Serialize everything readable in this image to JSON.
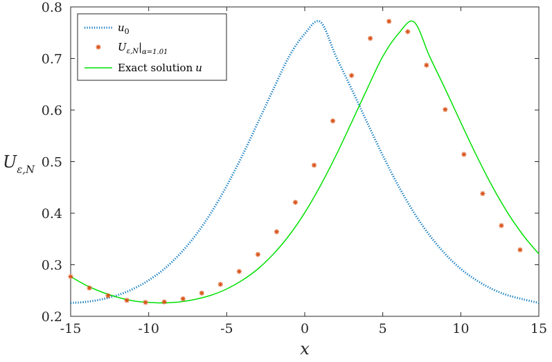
{
  "chart_data": {
    "type": "line",
    "xlabel": "x",
    "ylabel_main": "U",
    "ylabel_sub": "ε,N",
    "xlim": [
      -15,
      15
    ],
    "ylim": [
      0.2,
      0.8
    ],
    "x_ticks": [
      -15,
      -10,
      -5,
      0,
      5,
      10,
      15
    ],
    "x_tick_labels": [
      "-15",
      "-10",
      "-5",
      "0",
      "5",
      "10",
      "15"
    ],
    "y_ticks": [
      0.2,
      0.3,
      0.4,
      0.5,
      0.6,
      0.7,
      0.8
    ],
    "y_tick_labels": [
      "0.2",
      "0.3",
      "0.4",
      "0.5",
      "0.6",
      "0.7",
      "0.8"
    ],
    "grid": false,
    "legend_position": "top-left",
    "series": [
      {
        "name": "u0",
        "legend_main": "u",
        "legend_sub": "0",
        "style": "dotted",
        "color": "#0072BD",
        "x": [
          -15,
          -14,
          -13,
          -12,
          -11,
          -10,
          -9,
          -8,
          -7,
          -6,
          -5,
          -4,
          -3,
          -2,
          -1,
          0,
          1,
          2,
          3,
          4,
          5,
          6,
          7,
          8,
          9,
          10,
          11,
          12,
          13,
          14,
          15
        ],
        "y": [
          0.226,
          0.228,
          0.233,
          0.241,
          0.253,
          0.27,
          0.292,
          0.321,
          0.357,
          0.401,
          0.453,
          0.512,
          0.576,
          0.641,
          0.704,
          0.748,
          0.771,
          0.704,
          0.641,
          0.576,
          0.512,
          0.453,
          0.401,
          0.357,
          0.321,
          0.292,
          0.27,
          0.253,
          0.241,
          0.233,
          0.226
        ]
      },
      {
        "name": "U_ε,N|α=1.01",
        "legend_main": "U",
        "legend_sub": "ε,N",
        "legend_suffix": "|",
        "legend_cond": "α=1.01",
        "style": "markers",
        "marker": "asterisk",
        "color": "#D95319",
        "x": [
          -15,
          -13.8,
          -12.6,
          -11.4,
          -10.2,
          -9.0,
          -7.8,
          -6.6,
          -5.4,
          -4.2,
          -3.0,
          -1.8,
          -0.6,
          0.6,
          1.8,
          3.0,
          4.2,
          5.4,
          6.6,
          7.8,
          9.0,
          10.2,
          11.4,
          12.6,
          13.8
        ],
        "y": [
          0.277,
          0.255,
          0.24,
          0.231,
          0.227,
          0.228,
          0.234,
          0.245,
          0.262,
          0.287,
          0.32,
          0.364,
          0.421,
          0.493,
          0.579,
          0.667,
          0.739,
          0.772,
          0.752,
          0.687,
          0.601,
          0.514,
          0.438,
          0.376,
          0.329
        ]
      },
      {
        "name": "Exact solution u",
        "legend_main": "Exact solution",
        "legend_sub": "u",
        "style": "solid",
        "color": "#00E000",
        "x": [
          -15,
          -14,
          -13,
          -12,
          -11,
          -10,
          -9,
          -8,
          -7,
          -6,
          -5,
          -4,
          -3,
          -2,
          -1,
          0,
          1,
          2,
          3,
          4,
          5,
          6,
          7,
          8,
          9,
          10,
          11,
          12,
          13,
          14,
          15
        ],
        "y": [
          0.277,
          0.26,
          0.247,
          0.237,
          0.23,
          0.227,
          0.226,
          0.228,
          0.233,
          0.241,
          0.253,
          0.27,
          0.292,
          0.321,
          0.357,
          0.401,
          0.453,
          0.512,
          0.576,
          0.641,
          0.704,
          0.748,
          0.771,
          0.704,
          0.641,
          0.576,
          0.512,
          0.453,
          0.401,
          0.357,
          0.321
        ]
      }
    ]
  }
}
